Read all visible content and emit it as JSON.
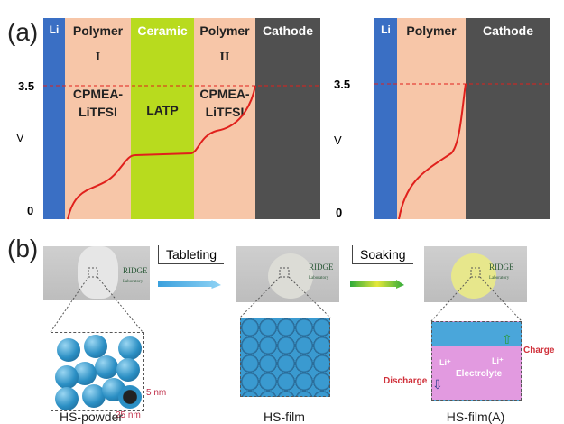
{
  "panel_a": {
    "label": "(a)",
    "y_label": "V",
    "tick_35": "3.5",
    "tick_0": "0",
    "left": {
      "layers": [
        {
          "name": "Li",
          "color": "#3a6fc4"
        },
        {
          "name": "Polymer",
          "sub": "I",
          "material": "CPMEA-\nLiTFSI",
          "color": "#f7c6a8"
        },
        {
          "name": "Ceramic",
          "material": "LATP",
          "color": "#b8db1e"
        },
        {
          "name": "Polymer",
          "sub": "II",
          "material": "CPMEA-\nLiTFSI",
          "color": "#f7c6a8"
        },
        {
          "name": "Cathode",
          "color": "#505050"
        }
      ]
    },
    "right": {
      "layers": [
        {
          "name": "Li",
          "color": "#3a6fc4"
        },
        {
          "name": "Polymer",
          "color": "#f7c6a8"
        },
        {
          "name": "Cathode",
          "color": "#505050"
        }
      ]
    },
    "curve_color": "#e0201c"
  },
  "panel_b": {
    "label": "(b)",
    "step1": "Tableting",
    "step2": "Soaking",
    "logo_text": "RIDGE",
    "logo_sub": "Laboratory",
    "captions": [
      "HS-powder",
      "HS-film",
      "HS-film(A)"
    ],
    "dims": {
      "shell": "5 nm",
      "diameter": "25 nm"
    },
    "electrolyte": "Electrolyte",
    "li_ion": "Li⁺",
    "charge": "Charge",
    "discharge": "Discharge"
  }
}
